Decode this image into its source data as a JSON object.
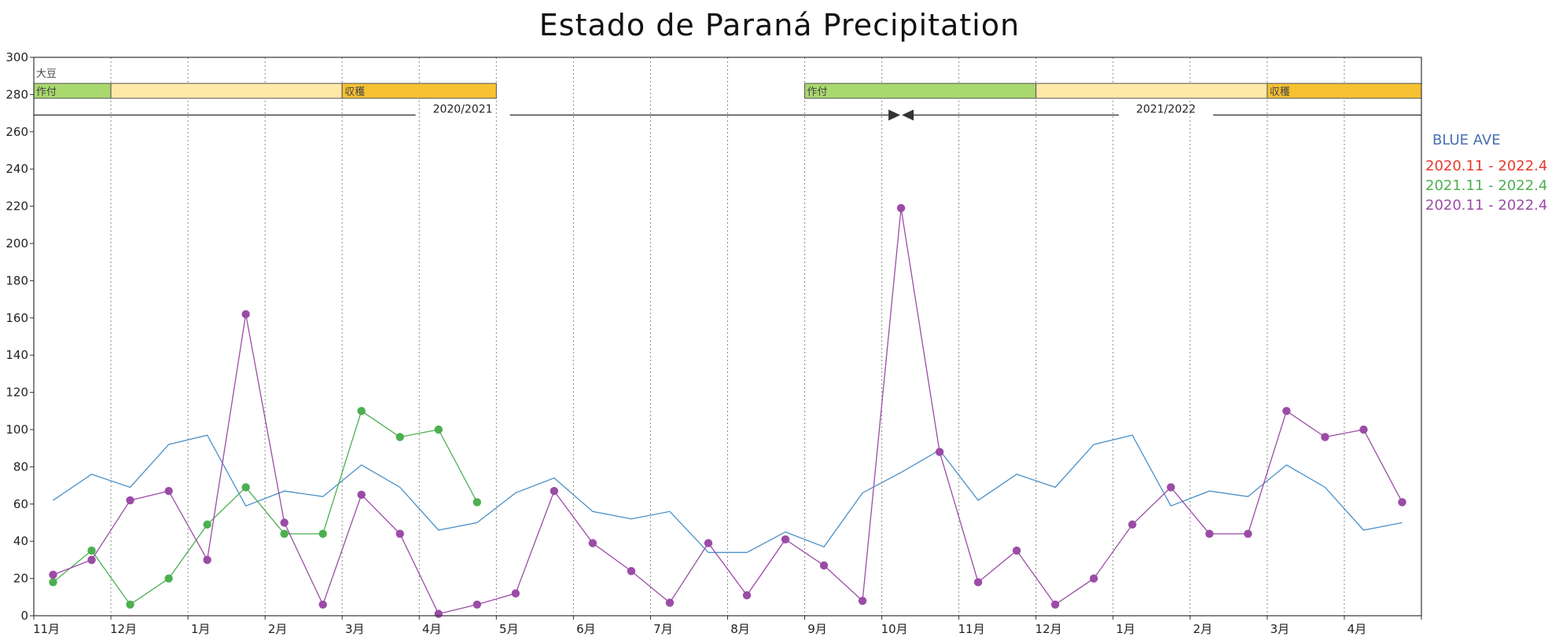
{
  "chart_data": {
    "type": "line",
    "title": "Estado de Paraná Precipitation",
    "xlabel": "",
    "ylabel": "",
    "ylim": [
      0,
      300
    ],
    "yticks": [
      0,
      20,
      40,
      60,
      80,
      100,
      120,
      140,
      160,
      180,
      200,
      220,
      240,
      260,
      280,
      300
    ],
    "grid": "vertical dotted",
    "month_labels": [
      "11月",
      "12月",
      "1月",
      "2月",
      "3月",
      "4月",
      "5月",
      "6月",
      "7月",
      "8月",
      "9月",
      "10月",
      "11月",
      "12月",
      "1月",
      "2月",
      "3月",
      "4月"
    ],
    "crop": {
      "name": "大豆",
      "planting_label": "作付",
      "harvest_label": "収穫",
      "colors": {
        "planting": "#a9d86e",
        "growing": "#ffe9a8",
        "harvest": "#f6c232"
      },
      "bands": [
        {
          "season": "2020/2021",
          "planting": [
            0,
            1
          ],
          "growing": [
            1,
            4
          ],
          "harvest": [
            4,
            6
          ]
        },
        {
          "season": "2021/2022",
          "planting": [
            10,
            13
          ],
          "growing": [
            13,
            16
          ],
          "harvest": [
            16,
            18
          ]
        }
      ]
    },
    "seasons": [
      "2020/2021",
      "2021/2022"
    ],
    "legend": {
      "placement": "right",
      "title": "BLUE AVE",
      "title_color": "#4a6fb0",
      "entries": [
        {
          "label": "2020.11 - 2022.4",
          "color": "#e8392c"
        },
        {
          "label": "2021.11 - 2022.4",
          "color": "#4caf50"
        },
        {
          "label": "2020.11 - 2022.4",
          "color": "#9b4ca6"
        }
      ]
    },
    "series": [
      {
        "color": "#4a90c8",
        "markers": false,
        "x": [
          0.25,
          0.75,
          1.25,
          1.75,
          2.25,
          2.75,
          3.25,
          3.75,
          4.25,
          4.75,
          5.25,
          5.75,
          6.25,
          6.75,
          7.25,
          7.75,
          8.25,
          8.75,
          9.25,
          9.75,
          10.25,
          10.75,
          11.25,
          11.75,
          12.25,
          12.75,
          13.25,
          13.75,
          14.25,
          14.75,
          15.25,
          15.75,
          16.25,
          16.75,
          17.25,
          17.75
        ],
        "values": [
          62,
          76,
          69,
          92,
          97,
          59,
          67,
          64,
          81,
          69,
          46,
          50,
          66,
          74,
          56,
          52,
          56,
          34,
          34,
          45,
          37,
          66,
          77,
          89,
          62,
          76,
          69,
          92,
          97,
          59,
          67,
          64,
          81,
          69,
          46,
          50
        ]
      },
      {
        "color": "#4caf50",
        "markers": true,
        "x": [
          0.25,
          0.75,
          1.25,
          1.75,
          2.25,
          2.75,
          3.25,
          3.75,
          4.25,
          4.75,
          5.25,
          5.75
        ],
        "values": [
          18,
          35,
          6,
          20,
          49,
          69,
          44,
          44,
          110,
          96,
          100,
          61
        ]
      },
      {
        "color": "#9b4ca6",
        "markers": true,
        "x": [
          0.25,
          0.75,
          1.25,
          1.75,
          2.25,
          2.75,
          3.25,
          3.75,
          4.25,
          4.75,
          5.25,
          5.75,
          6.25,
          6.75,
          7.25,
          7.75,
          8.25,
          8.75,
          9.25,
          9.75,
          10.25,
          10.75,
          11.25,
          11.75,
          12.25,
          12.75,
          13.25,
          13.75,
          14.25,
          14.75,
          15.25,
          15.75,
          16.25,
          16.75,
          17.25,
          17.75
        ],
        "values": [
          22,
          30,
          62,
          67,
          30,
          162,
          50,
          6,
          65,
          44,
          1,
          6,
          12,
          67,
          39,
          24,
          7,
          39,
          11,
          41,
          27,
          8,
          219,
          88,
          18,
          35,
          6,
          20,
          49,
          69,
          44,
          44,
          110,
          96,
          100,
          61
        ]
      }
    ]
  }
}
